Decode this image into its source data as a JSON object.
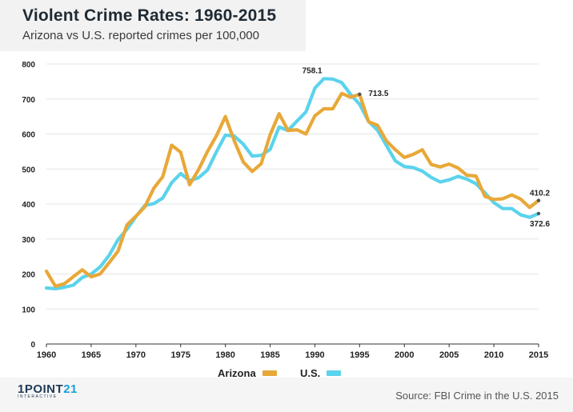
{
  "header": {
    "title": "Violent Crime Rates: 1960-2015",
    "subtitle": "Arizona vs U.S. reported crimes per 100,000"
  },
  "footer": {
    "source": "Source: FBI Crime in the U.S. 2015",
    "logo_main": "1POINT",
    "logo_number": "21",
    "logo_sub": "INTERACTIVE"
  },
  "colors": {
    "arizona": "#e8a838",
    "us": "#5bd3ec"
  },
  "chart_data": {
    "type": "line",
    "title": "Violent Crime Rates: 1960-2015",
    "xlabel": "",
    "ylabel": "",
    "xlim": [
      1960,
      2015
    ],
    "ylim": [
      0,
      800
    ],
    "x_ticks": [
      1960,
      1965,
      1970,
      1975,
      1980,
      1985,
      1990,
      1995,
      2000,
      2005,
      2010,
      2015
    ],
    "y_ticks": [
      0,
      100,
      200,
      300,
      400,
      500,
      600,
      700,
      800
    ],
    "grid": "horizontal",
    "legend_position": "bottom",
    "x": [
      1960,
      1961,
      1962,
      1963,
      1964,
      1965,
      1966,
      1967,
      1968,
      1969,
      1970,
      1971,
      1972,
      1973,
      1974,
      1975,
      1976,
      1977,
      1978,
      1979,
      1980,
      1981,
      1982,
      1983,
      1984,
      1985,
      1986,
      1987,
      1988,
      1989,
      1990,
      1991,
      1992,
      1993,
      1994,
      1995,
      1996,
      1997,
      1998,
      1999,
      2000,
      2001,
      2002,
      2003,
      2004,
      2005,
      2006,
      2007,
      2008,
      2009,
      2010,
      2011,
      2012,
      2013,
      2014,
      2015
    ],
    "series": [
      {
        "name": "Arizona",
        "color": "#e8a838",
        "values": [
          208,
          165,
          172,
          192,
          212,
          192,
          200,
          232,
          265,
          340,
          365,
          392,
          445,
          478,
          568,
          548,
          455,
          498,
          550,
          595,
          650,
          580,
          520,
          493,
          515,
          598,
          658,
          610,
          612,
          600,
          652,
          672,
          672,
          716,
          705,
          713.5,
          635,
          625,
          580,
          555,
          533,
          542,
          555,
          513,
          506,
          514,
          503,
          482,
          480,
          422,
          413,
          415,
          426,
          414,
          390,
          410.2
        ]
      },
      {
        "name": "U.S.",
        "color": "#5bd3ec",
        "values": [
          160,
          158,
          162,
          168,
          190,
          200,
          220,
          253,
          298,
          328,
          364,
          396,
          401,
          417,
          461,
          487,
          467,
          475,
          497,
          549,
          597,
          594,
          571,
          537,
          539,
          556,
          620,
          610,
          637,
          663,
          731,
          758.1,
          757,
          747,
          713,
          685,
          636,
          611,
          567,
          523,
          507,
          504,
          494,
          476,
          463,
          469,
          479,
          471,
          458,
          432,
          404,
          387,
          387,
          369,
          362,
          372.6
        ]
      }
    ],
    "annotations": [
      {
        "text": "758.1",
        "x": 1991,
        "y": 758.1
      },
      {
        "text": "713.5",
        "x": 1995,
        "y": 713.5
      },
      {
        "text": "410.2",
        "x": 2015,
        "y": 410.2
      },
      {
        "text": "372.6",
        "x": 2015,
        "y": 372.6
      }
    ]
  }
}
